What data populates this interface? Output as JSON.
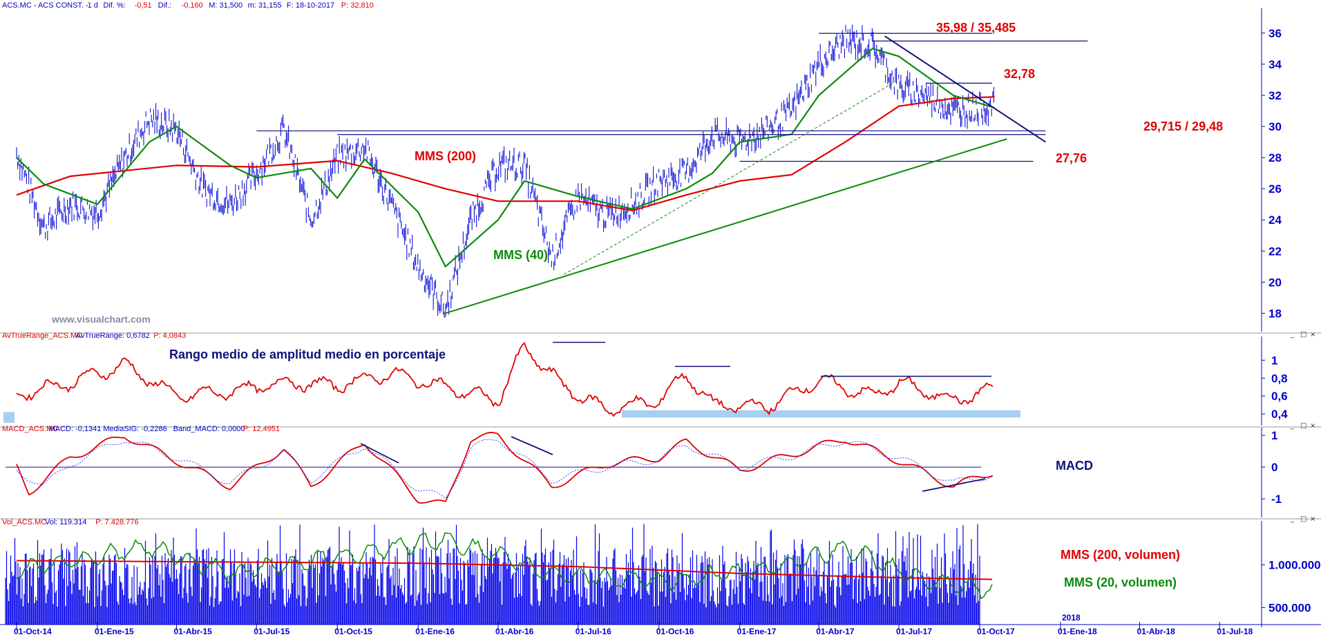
{
  "panels": {
    "price": {
      "header": [
        {
          "text": "ACS.MC - ACS CONST. -",
          "neg": false
        },
        {
          "text": "1 d",
          "neg": false
        },
        {
          "text": "Dif. %:",
          "neg": false
        },
        {
          "text": "-0,51",
          "neg": true
        },
        {
          "text": "Dif.:",
          "neg": false
        },
        {
          "text": "-0,160",
          "neg": true
        },
        {
          "text": "M: 31,500",
          "neg": false
        },
        {
          "text": "m: 31,155",
          "neg": false
        },
        {
          "text": "F: 18-10-2017",
          "neg": false
        },
        {
          "text": "P: 32,810",
          "neg": true
        }
      ],
      "watermark": "www.visualchart.com"
    },
    "atr": {
      "header": [
        {
          "text": "AvTrueRange_ACS.MC",
          "neg": true
        },
        {
          "text": "AvTrueRange: 0,6782",
          "neg": false
        },
        {
          "text": "P: 4,0843",
          "neg": true
        }
      ]
    },
    "macd": {
      "header": [
        {
          "text": "MACD_ACS.MC",
          "neg": true
        },
        {
          "text": "MACD: -0,1341",
          "neg": false
        },
        {
          "text": "MediaSIG: -0,2286",
          "neg": false
        },
        {
          "text": "Band_MACD: 0,0000",
          "neg": false
        },
        {
          "text": "P: 12,4951",
          "neg": true
        }
      ]
    },
    "volume": {
      "header": [
        {
          "text": "Vol_ACS.MC",
          "neg": true
        },
        {
          "text": "Vol: 119.314",
          "neg": false
        },
        {
          "text": "P: 7.428.776",
          "neg": true
        }
      ]
    }
  },
  "chart_data": [
    {
      "type": "line",
      "panel": "price",
      "ylim": [
        17,
        37.5
      ],
      "y_ticks": [
        "36",
        "34",
        "32",
        "30",
        "28",
        "26",
        "24",
        "22",
        "20",
        "18"
      ],
      "series": [
        {
          "name": "MMS (200)",
          "color": "#e00000",
          "points": [
            [
              "01-Oct-14",
              25.6
            ],
            [
              "01-Dic-14",
              26.8
            ],
            [
              "01-Abr-15",
              27.5
            ],
            [
              "01-Jul-15",
              27.4
            ],
            [
              "01-Oct-15",
              27.8
            ],
            [
              "01-Dic-15",
              27.0
            ],
            [
              "01-Feb-16",
              26.0
            ],
            [
              "01-Abr-16",
              25.2
            ],
            [
              "01-Jul-16",
              25.2
            ],
            [
              "01-Sep-16",
              24.6
            ],
            [
              "01-Nov-16",
              25.6
            ],
            [
              "01-Ene-17",
              26.5
            ],
            [
              "01-Mar-17",
              26.9
            ],
            [
              "01-May-17",
              29.0
            ],
            [
              "01-Jul-17",
              31.3
            ],
            [
              "01-Sep-17",
              31.8
            ],
            [
              "18-Oct-17",
              31.9
            ]
          ]
        },
        {
          "name": "MMS (40)",
          "color": "#0a8a0a",
          "points": [
            [
              "01-Oct-14",
              28.0
            ],
            [
              "01-Nov-14",
              26.3
            ],
            [
              "01-Ene-15",
              25.0
            ],
            [
              "01-Mar-15",
              29.0
            ],
            [
              "01-Abr-15",
              30.0
            ],
            [
              "01-Jun-15",
              27.5
            ],
            [
              "01-Jul-15",
              26.7
            ],
            [
              "01-Sep-15",
              27.3
            ],
            [
              "01-Oct-15",
              25.4
            ],
            [
              "01-Nov-15",
              27.9
            ],
            [
              "01-Ene-16",
              24.5
            ],
            [
              "01-Feb-16",
              21.0
            ],
            [
              "01-Abr-16",
              24.0
            ],
            [
              "01-May-16",
              26.5
            ],
            [
              "01-Jul-16",
              25.5
            ],
            [
              "01-Sep-16",
              24.7
            ],
            [
              "01-Nov-16",
              26.0
            ],
            [
              "01-Dic-16",
              27.0
            ],
            [
              "01-Ene-17",
              29.0
            ],
            [
              "01-Mar-17",
              29.5
            ],
            [
              "01-Abr-17",
              32.0
            ],
            [
              "01-Jun-17",
              35.0
            ],
            [
              "01-Jul-17",
              34.5
            ],
            [
              "01-Sep-17",
              32.0
            ],
            [
              "18-Oct-17",
              31.2
            ]
          ]
        }
      ],
      "price_path": [
        [
          "01-Oct-14",
          28.3
        ],
        [
          "01-Nov-14",
          23.5
        ],
        [
          "01-Dic-14",
          25.0
        ],
        [
          "01-Ene-15",
          24.5
        ],
        [
          "01-Feb-15",
          28.0
        ],
        [
          "01-Mar-15",
          30.5
        ],
        [
          "01-Abr-15",
          29.8
        ],
        [
          "01-May-15",
          26.0
        ],
        [
          "01-Jun-15",
          25.0
        ],
        [
          "01-Jul-15",
          27.0
        ],
        [
          "01-Ago-15",
          29.8
        ],
        [
          "01-Sep-15",
          24.0
        ],
        [
          "01-Oct-15",
          28.0
        ],
        [
          "01-Nov-15",
          28.7
        ],
        [
          "01-Dic-15",
          25.0
        ],
        [
          "01-Ene-16",
          21.0
        ],
        [
          "01-Feb-16",
          18.2
        ],
        [
          "01-Mar-16",
          24.0
        ],
        [
          "01-Abr-16",
          27.5
        ],
        [
          "01-May-16",
          27.5
        ],
        [
          "01-Jun-16",
          21.5
        ],
        [
          "01-Jul-16",
          25.5
        ],
        [
          "01-Ago-16",
          24.3
        ],
        [
          "01-Sep-16",
          25.0
        ],
        [
          "01-Oct-16",
          26.5
        ],
        [
          "01-Nov-16",
          27.0
        ],
        [
          "01-Dic-16",
          29.5
        ],
        [
          "01-Ene-17",
          29.0
        ],
        [
          "01-Feb-17",
          29.8
        ],
        [
          "01-Mar-17",
          31.0
        ],
        [
          "01-Abr-17",
          34.0
        ],
        [
          "01-May-17",
          35.5
        ],
        [
          "01-Jun-17",
          35.2
        ],
        [
          "01-Jul-17",
          32.5
        ],
        [
          "01-Ago-17",
          32.0
        ],
        [
          "01-Sep-17",
          31.0
        ],
        [
          "18-Oct-17",
          31.3
        ]
      ],
      "lines": [
        {
          "label": "35,98 / 35,485",
          "from": "01-Abr-17",
          "to": "15-Oct-17",
          "y": 35.98,
          "color": "#10107a"
        },
        {
          "label": "",
          "from": "01-Jun-17",
          "to": "01-Feb-18",
          "y": 35.485,
          "color": "#10107a"
        },
        {
          "label": "32,78",
          "from": "01-Ago-17",
          "to": "15-Oct-17",
          "y": 32.78,
          "color": "#10107a"
        },
        {
          "label": "29,715 / 29,48",
          "from": "01-Jul-15",
          "to": "15-Dic-17",
          "y": 29.715,
          "color": "#10107a"
        },
        {
          "label": "",
          "from": "01-Oct-15",
          "to": "15-Dic-17",
          "y": 29.48,
          "color": "#10107a"
        },
        {
          "label": "27,76",
          "from": "01-Ene-17",
          "to": "01-Dic-17",
          "y": 27.76,
          "color": "#10107a"
        }
      ],
      "trendlines": [
        {
          "from": [
            "01-Feb-16",
            18.0
          ],
          "to": [
            "01-Nov-17",
            29.2
          ],
          "color": "#0a8a0a",
          "dashed": false
        },
        {
          "from": [
            "15-Jun-16",
            20.5
          ],
          "to": [
            "01-Jul-17",
            33.0
          ],
          "color": "#0a8a0a",
          "dashed": true
        },
        {
          "from": [
            "15-Jun-17",
            35.8
          ],
          "to": [
            "15-Dic-17",
            29.0
          ],
          "color": "#10107a",
          "dashed": false
        }
      ],
      "annotations": [
        {
          "text": "MMS (200)",
          "color": "red"
        },
        {
          "text": "MMS (40)",
          "color": "green"
        }
      ]
    },
    {
      "type": "line",
      "panel": "atr",
      "ylim": [
        0.3,
        1.25
      ],
      "y_ticks": [
        "1",
        "0,8",
        "0,6",
        "0,4"
      ],
      "series": [
        {
          "name": "AvTrueRange",
          "color": "#e00000",
          "points": [
            [
              "01-Oct-14",
              0.62
            ],
            [
              "01-Dic-14",
              0.75
            ],
            [
              "01-Feb-15",
              0.95
            ],
            [
              "01-Abr-15",
              0.6
            ],
            [
              "01-Jun-15",
              0.65
            ],
            [
              "01-Ago-15",
              0.75
            ],
            [
              "01-Oct-15",
              0.72
            ],
            [
              "01-Dic-15",
              0.85
            ],
            [
              "01-Feb-16",
              0.7
            ],
            [
              "01-Abr-16",
              0.55
            ],
            [
              "01-May-16",
              1.15
            ],
            [
              "15-Jun-16",
              0.7
            ],
            [
              "01-Ago-16",
              0.45
            ],
            [
              "01-Oct-16",
              0.55
            ],
            [
              "01-Nov-16",
              0.85
            ],
            [
              "01-Dic-16",
              0.5
            ],
            [
              "01-Feb-17",
              0.48
            ],
            [
              "01-Abr-17",
              0.78
            ],
            [
              "01-Jun-17",
              0.6
            ],
            [
              "01-Jul-17",
              0.75
            ],
            [
              "01-Sep-17",
              0.55
            ],
            [
              "18-Oct-17",
              0.68
            ]
          ]
        }
      ],
      "annotations": [
        {
          "text": "Rango medio de amplitud medio en porcentaje",
          "color": "navy"
        }
      ]
    },
    {
      "type": "line",
      "panel": "macd",
      "ylim": [
        -1.5,
        1.2
      ],
      "y_ticks": [
        "1",
        "0",
        "-1"
      ],
      "series": [
        {
          "name": "MACD",
          "color": "#e00000",
          "points": [
            [
              "01-Oct-14",
              0.0
            ],
            [
              "15-Oct-14",
              -0.8
            ],
            [
              "01-Dic-14",
              0.3
            ],
            [
              "01-Feb-15",
              1.0
            ],
            [
              "01-Abr-15",
              0.2
            ],
            [
              "01-Jun-15",
              -0.6
            ],
            [
              "01-Ago-15",
              0.6
            ],
            [
              "01-Sep-15",
              -0.6
            ],
            [
              "01-Nov-15",
              0.8
            ],
            [
              "01-Ene-16",
              -1.0
            ],
            [
              "01-Feb-16",
              -1.2
            ],
            [
              "01-Mar-16",
              0.9
            ],
            [
              "01-Abr-16",
              1.0
            ],
            [
              "01-Jun-16",
              -0.6
            ],
            [
              "01-Ago-16",
              0.1
            ],
            [
              "01-Oct-16",
              0.3
            ],
            [
              "01-Nov-16",
              0.8
            ],
            [
              "01-Ene-17",
              -0.1
            ],
            [
              "01-Mar-17",
              0.4
            ],
            [
              "01-May-17",
              0.9
            ],
            [
              "01-Jul-17",
              0.2
            ],
            [
              "01-Sep-17",
              -0.6
            ],
            [
              "18-Oct-17",
              -0.13
            ]
          ]
        },
        {
          "name": "MediaSIG",
          "color": "#3a3aff",
          "points": [
            [
              "01-Oct-14",
              -0.1
            ],
            [
              "01-Nov-14",
              -0.6
            ],
            [
              "01-Dic-14",
              0.1
            ],
            [
              "01-Feb-15",
              0.9
            ],
            [
              "01-Abr-15",
              0.3
            ],
            [
              "01-Jun-15",
              -0.5
            ],
            [
              "01-Ago-15",
              0.5
            ],
            [
              "01-Sep-15",
              -0.4
            ],
            [
              "01-Nov-15",
              0.7
            ],
            [
              "01-Ene-16",
              -0.7
            ],
            [
              "01-Feb-16",
              -1.0
            ],
            [
              "01-Mar-16",
              0.6
            ],
            [
              "01-Abr-16",
              0.9
            ],
            [
              "01-Jun-16",
              -0.4
            ],
            [
              "01-Ago-16",
              0.0
            ],
            [
              "01-Oct-16",
              0.25
            ],
            [
              "01-Nov-16",
              0.7
            ],
            [
              "01-Ene-17",
              0.0
            ],
            [
              "01-Mar-17",
              0.35
            ],
            [
              "01-May-17",
              0.85
            ],
            [
              "01-Jul-17",
              0.3
            ],
            [
              "01-Sep-17",
              -0.5
            ],
            [
              "18-Oct-17",
              -0.23
            ]
          ]
        }
      ],
      "annotations": [
        {
          "text": "MACD",
          "color": "navy"
        }
      ]
    },
    {
      "type": "bar",
      "panel": "volume",
      "ylim": [
        300000,
        1500000
      ],
      "y_ticks": [
        "1.000.000",
        "500.000"
      ],
      "series": [
        {
          "name": "MMS (200, volumen)",
          "color": "#e00000",
          "points": [
            [
              "01-Oct-14",
              1050000
            ],
            [
              "01-Ene-16",
              1020000
            ],
            [
              "01-Jul-16",
              980000
            ],
            [
              "01-Ene-17",
              900000
            ],
            [
              "01-Jul-17",
              850000
            ],
            [
              "18-Oct-17",
              830000
            ]
          ]
        },
        {
          "name": "MMS (20, volumen)",
          "color": "#0a8a0a",
          "points": [
            [
              "01-Oct-14",
              950000
            ],
            [
              "01-Mar-15",
              1200000
            ],
            [
              "01-Jun-15",
              900000
            ],
            [
              "01-Oct-15",
              1100000
            ],
            [
              "01-Feb-16",
              1300000
            ],
            [
              "01-Jun-16",
              900000
            ],
            [
              "01-Oct-16",
              800000
            ],
            [
              "01-Feb-17",
              950000
            ],
            [
              "01-May-17",
              1200000
            ],
            [
              "01-Ago-17",
              800000
            ],
            [
              "18-Oct-17",
              700000
            ]
          ]
        }
      ],
      "annotations": [
        {
          "text": "MMS (200, volumen)",
          "color": "red"
        },
        {
          "text": "MMS (20, volumen)",
          "color": "green"
        }
      ]
    }
  ],
  "x_axis": {
    "ticks": [
      "01-Oct-14",
      "01-Ene-15",
      "01-Abr-15",
      "01-Jul-15",
      "01-Oct-15",
      "01-Ene-16",
      "01-Abr-16",
      "01-Jul-16",
      "01-Oct-16",
      "01-Ene-17",
      "01-Abr-17",
      "01-Jul-17",
      "01-Oct-17",
      "01-Ene-18",
      "01-Abr-18",
      "01-Jul-18"
    ],
    "year_label": "2018"
  },
  "colors": {
    "price_bars": "#1010d8",
    "volume_bars": "#0000e8",
    "axis": "#0000cc",
    "highlight": "#a6cff2"
  }
}
